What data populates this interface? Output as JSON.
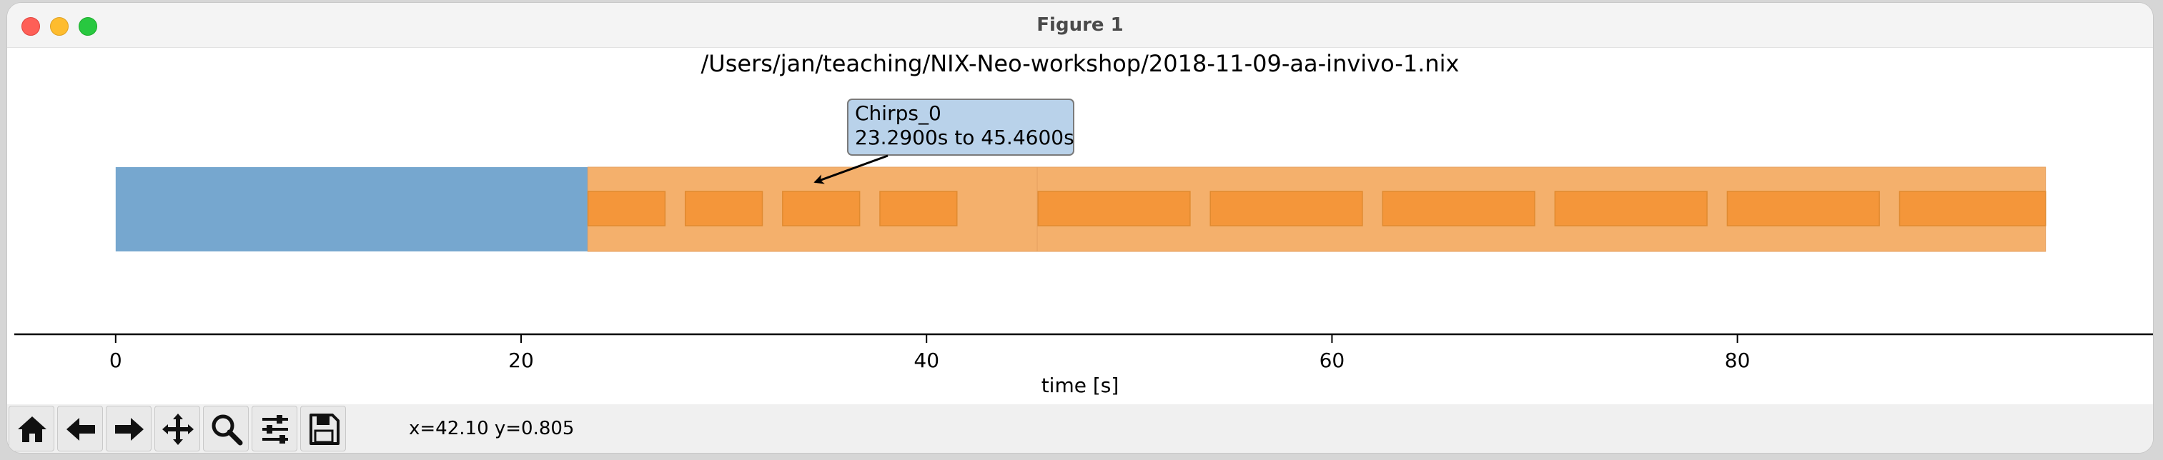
{
  "window": {
    "title": "Figure 1"
  },
  "colors": {
    "base": "#76a7cf",
    "tag": "#f4b06c",
    "chirp": "#f4963a",
    "annotation_bg": "#b9d2ea"
  },
  "chart_data": {
    "type": "timeline",
    "title": "/Users/jan/teaching/NIX-Neo-workshop/2018-11-09-aa-invivo-1.nix",
    "xlabel": "time [s]",
    "xlim": [
      -5,
      100.5
    ],
    "xticks": [
      0,
      20,
      40,
      60,
      80
    ],
    "grid": false,
    "segments": [
      {
        "label": "",
        "start": 0,
        "end": 23.29,
        "color": "base"
      },
      {
        "label": "Chirps_0",
        "start": 23.29,
        "end": 45.46,
        "color": "tag"
      },
      {
        "label": "",
        "start": 45.46,
        "end": 95.2,
        "color": "tag"
      }
    ],
    "chirps": [
      {
        "start": 23.3,
        "end": 27.1
      },
      {
        "start": 28.1,
        "end": 31.9
      },
      {
        "start": 32.9,
        "end": 36.7
      },
      {
        "start": 37.7,
        "end": 41.5
      },
      {
        "start": 45.5,
        "end": 53.0
      },
      {
        "start": 54.0,
        "end": 61.5
      },
      {
        "start": 62.5,
        "end": 70.0
      },
      {
        "start": 71.0,
        "end": 78.5
      },
      {
        "start": 79.5,
        "end": 87.0
      },
      {
        "start": 88.0,
        "end": 95.2
      }
    ],
    "annotation": {
      "title": "Chirps_0",
      "text": "23.2900s to 45.4600s",
      "arrow_target_x": 34.5
    }
  },
  "toolbar": {
    "buttons": [
      {
        "name": "home-button",
        "icon": "home-icon"
      },
      {
        "name": "back-button",
        "icon": "arrow-left-icon"
      },
      {
        "name": "forward-button",
        "icon": "arrow-right-icon"
      },
      {
        "name": "pan-button",
        "icon": "move-icon"
      },
      {
        "name": "zoom-button",
        "icon": "magnifier-icon"
      },
      {
        "name": "configure-subplots-button",
        "icon": "sliders-icon"
      },
      {
        "name": "save-button",
        "icon": "floppy-disk-icon"
      }
    ],
    "coordinates": "x=42.10 y=0.805"
  }
}
